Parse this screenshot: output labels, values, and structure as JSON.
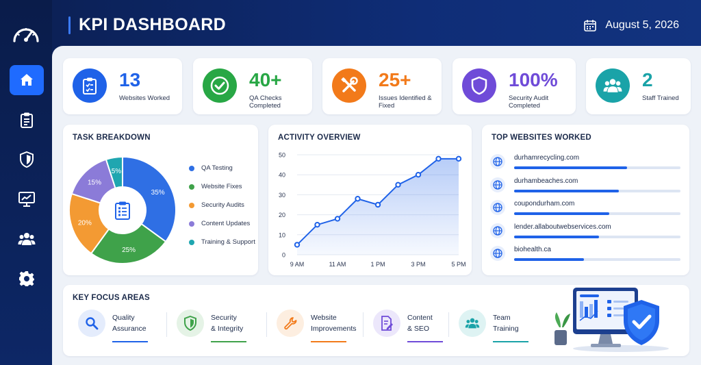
{
  "header": {
    "title": "KPI DASHBOARD",
    "date": "August 5, 2026"
  },
  "sidebar": {
    "items": [
      {
        "icon": "home-icon",
        "active": true
      },
      {
        "icon": "clipboard-icon",
        "active": false
      },
      {
        "icon": "shield-icon",
        "active": false
      },
      {
        "icon": "monitor-chart-icon",
        "active": false
      },
      {
        "icon": "users-icon",
        "active": false
      },
      {
        "icon": "gear-icon",
        "active": false
      }
    ]
  },
  "kpis": [
    {
      "value": "13",
      "label": "Websites Worked",
      "color": "#1f62e8",
      "icon": "clipboard-icon"
    },
    {
      "value": "40+",
      "label": "QA Checks Completed",
      "color": "#28a745",
      "icon": "check-icon"
    },
    {
      "value": "25+",
      "label": "Issues Identified & Fixed",
      "color": "#f27a1a",
      "icon": "tools-icon"
    },
    {
      "value": "100%",
      "label": "Security Audit Completed",
      "color": "#6f4bd8",
      "icon": "shield-icon"
    },
    {
      "value": "2",
      "label": "Staff Trained",
      "color": "#1aa3a8",
      "icon": "users-icon"
    }
  ],
  "task_breakdown": {
    "title": "TASK BREAKDOWN",
    "segments": [
      {
        "name": "QA Testing",
        "value": 35,
        "label": "35%",
        "color": "#2f6fe4"
      },
      {
        "name": "Website Fixes",
        "value": 25,
        "label": "25%",
        "color": "#3fa24a"
      },
      {
        "name": "Security Audits",
        "value": 20,
        "label": "20%",
        "color": "#f39a33"
      },
      {
        "name": "Content Updates",
        "value": 15,
        "label": "15%",
        "color": "#8b7bd8"
      },
      {
        "name": "Training & Support",
        "value": 5,
        "label": "5%",
        "color": "#1fa6b0"
      }
    ]
  },
  "activity": {
    "title": "ACTIVITY OVERVIEW"
  },
  "chart_data": {
    "type": "area",
    "title": "ACTIVITY OVERVIEW",
    "x_ticks": [
      "9 AM",
      "11 AM",
      "1 PM",
      "3 PM",
      "5 PM"
    ],
    "x": [
      9,
      10,
      11,
      12,
      13,
      14,
      15,
      16,
      17
    ],
    "values": [
      5,
      15,
      18,
      28,
      25,
      35,
      40,
      48,
      48
    ],
    "ylim": [
      0,
      50
    ],
    "y_ticks": [
      0,
      10,
      20,
      30,
      40,
      50
    ],
    "grid": "horizontal",
    "color": "#1f62e8"
  },
  "top_websites": {
    "title": "TOP WEBSITES WORKED",
    "sites": [
      {
        "name": "durhamrecycling.com",
        "progress": 0.68
      },
      {
        "name": "durhambeaches.com",
        "progress": 0.63
      },
      {
        "name": "coupondurham.com",
        "progress": 0.57
      },
      {
        "name": "lender.allaboutwebservices.com",
        "progress": 0.51
      },
      {
        "name": "biohealth.ca",
        "progress": 0.42
      }
    ]
  },
  "focus": {
    "title": "KEY FOCUS AREAS",
    "items": [
      {
        "label": "Quality\nAssurance",
        "color": "#1f62e8",
        "bg": "#e4ecfc",
        "icon": "magnifier-icon"
      },
      {
        "label": "Security\n& Integrity",
        "color": "#3fa24a",
        "bg": "#e5f3e6",
        "icon": "shield-icon"
      },
      {
        "label": "Website\nImprovements",
        "color": "#f27a1a",
        "bg": "#fdeee0",
        "icon": "wrench-icon"
      },
      {
        "label": "Content\n& SEO",
        "color": "#6f4bd8",
        "bg": "#ece7fb",
        "icon": "document-edit-icon"
      },
      {
        "label": "Team\nTraining",
        "color": "#1aa3a8",
        "bg": "#def3f3",
        "icon": "users-icon"
      }
    ]
  }
}
